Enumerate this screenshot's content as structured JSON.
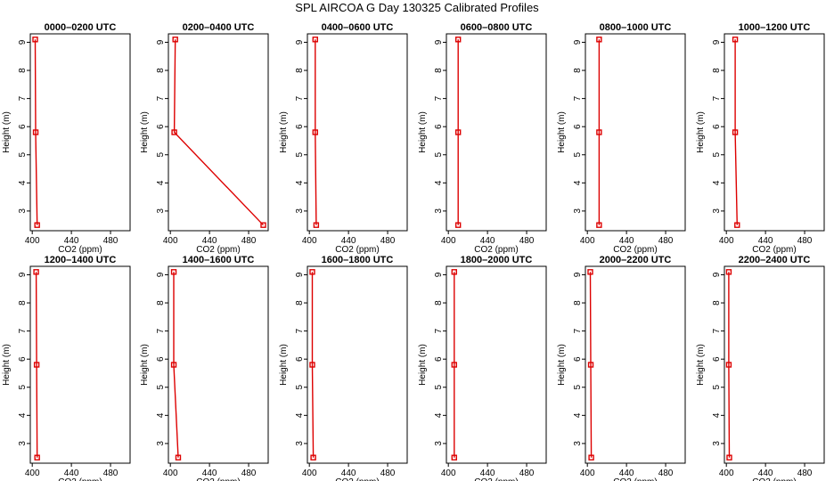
{
  "title": "SPL AIRCOA G  Day 130325  Calibrated Profiles",
  "chart_data": {
    "type": "line",
    "title": "SPL AIRCOA G  Day 130325  Calibrated Profiles",
    "xlabel": "CO2 (ppm)",
    "ylabel": "Height (m)",
    "xlim": [
      398,
      500
    ],
    "ylim": [
      2.3,
      9.3
    ],
    "xticks": [
      400,
      440,
      480
    ],
    "yticks": [
      3,
      4,
      5,
      6,
      7,
      8,
      9
    ],
    "heights": [
      2.5,
      5.8,
      9.1
    ],
    "panels": [
      {
        "name": "0000–0200 UTC",
        "co2": [
          405,
          403.5,
          403
        ]
      },
      {
        "name": "0200–0400 UTC",
        "co2": [
          495,
          404,
          405
        ]
      },
      {
        "name": "0400–0600 UTC",
        "co2": [
          407,
          406,
          406
        ]
      },
      {
        "name": "0600–0800 UTC",
        "co2": [
          410,
          410,
          410
        ]
      },
      {
        "name": "0800–1000 UTC",
        "co2": [
          412,
          412,
          412
        ]
      },
      {
        "name": "1000–1200 UTC",
        "co2": [
          411,
          409,
          409
        ]
      },
      {
        "name": "1200–1400 UTC",
        "co2": [
          405,
          404.5,
          404
        ]
      },
      {
        "name": "1400–1600 UTC",
        "co2": [
          408,
          403.5,
          403.5
        ]
      },
      {
        "name": "1600–1800 UTC",
        "co2": [
          404,
          403,
          403
        ]
      },
      {
        "name": "1800–2000 UTC",
        "co2": [
          406,
          406,
          406
        ]
      },
      {
        "name": "2000–2200 UTC",
        "co2": [
          404,
          403.5,
          403
        ]
      },
      {
        "name": "2200–2400 UTC",
        "co2": [
          403,
          402.5,
          402.5
        ]
      }
    ]
  }
}
